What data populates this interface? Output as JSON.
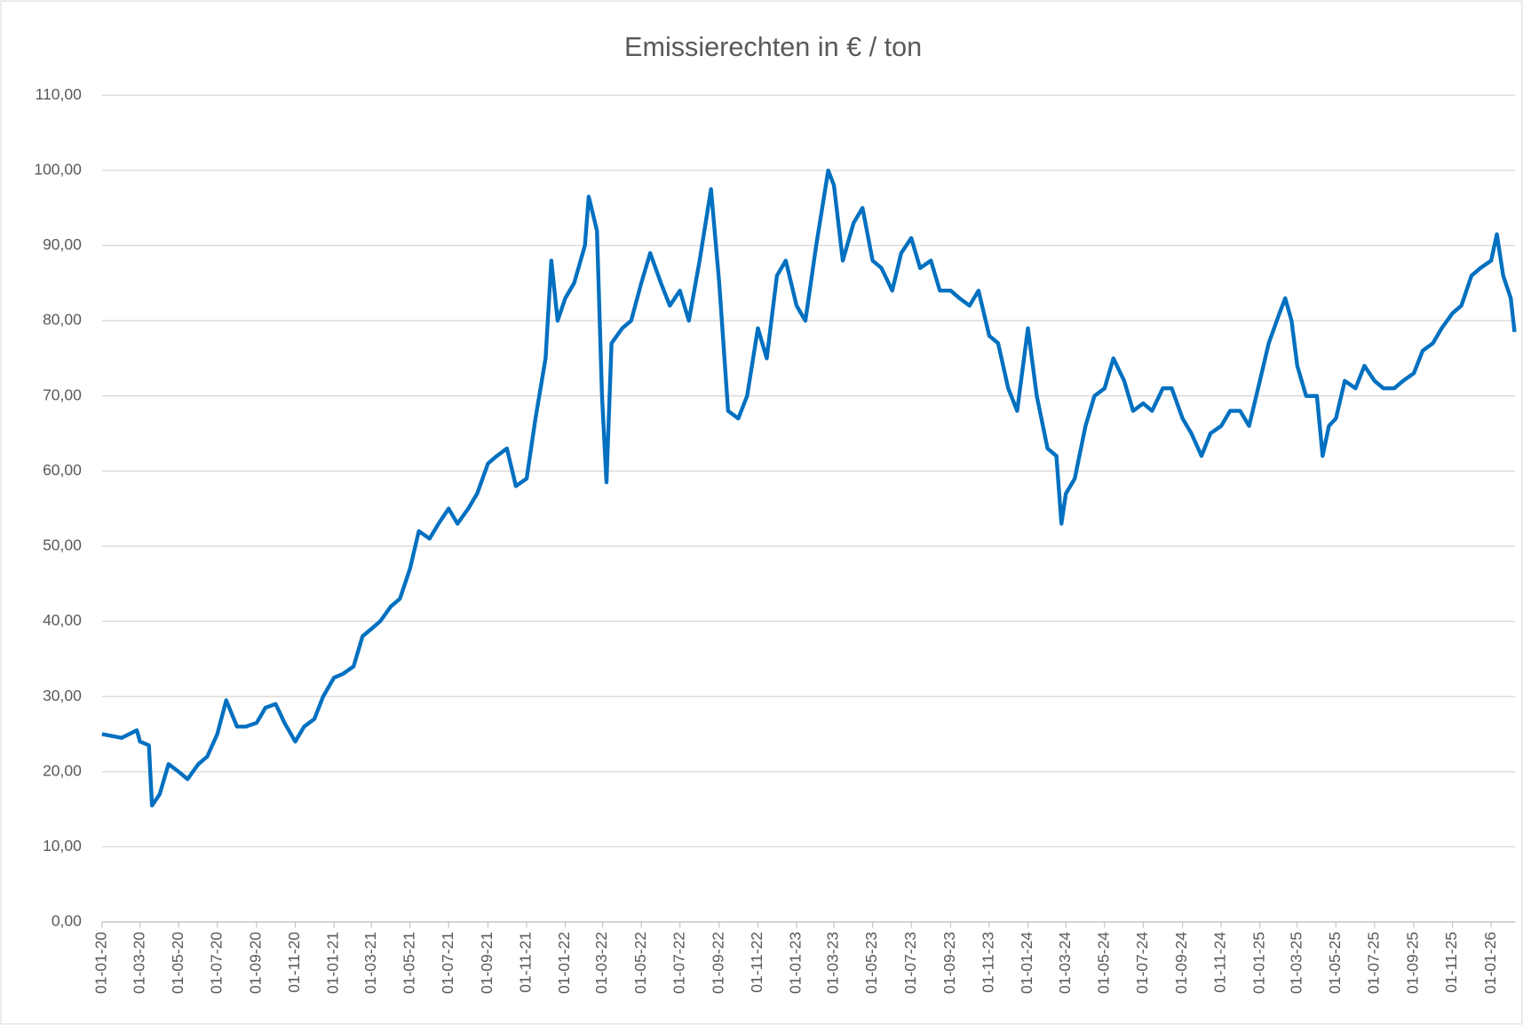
{
  "chart_data": {
    "type": "line",
    "title": "Emissierechten in € / ton",
    "x": [
      "2020-01-01",
      "2020-02-01",
      "2020-02-25",
      "2020-03-01",
      "2020-03-15",
      "2020-03-20",
      "2020-04-01",
      "2020-04-15",
      "2020-05-01",
      "2020-05-15",
      "2020-06-01",
      "2020-06-15",
      "2020-07-01",
      "2020-07-15",
      "2020-08-01",
      "2020-08-15",
      "2020-09-01",
      "2020-09-15",
      "2020-10-01",
      "2020-10-15",
      "2020-11-01",
      "2020-11-15",
      "2020-12-01",
      "2020-12-15",
      "2021-01-01",
      "2021-01-15",
      "2021-02-01",
      "2021-02-15",
      "2021-03-01",
      "2021-03-15",
      "2021-04-01",
      "2021-04-15",
      "2021-05-01",
      "2021-05-15",
      "2021-06-01",
      "2021-06-15",
      "2021-07-01",
      "2021-07-15",
      "2021-08-01",
      "2021-08-15",
      "2021-09-01",
      "2021-09-15",
      "2021-10-01",
      "2021-10-15",
      "2021-11-01",
      "2021-11-15",
      "2021-12-01",
      "2021-12-10",
      "2021-12-20",
      "2022-01-01",
      "2022-01-15",
      "2022-02-01",
      "2022-02-07",
      "2022-02-20",
      "2022-02-28",
      "2022-03-07",
      "2022-03-15",
      "2022-04-01",
      "2022-04-15",
      "2022-05-01",
      "2022-05-15",
      "2022-06-01",
      "2022-06-15",
      "2022-07-01",
      "2022-07-15",
      "2022-08-01",
      "2022-08-19",
      "2022-09-01",
      "2022-09-15",
      "2022-10-01",
      "2022-10-15",
      "2022-11-01",
      "2022-11-15",
      "2022-12-01",
      "2022-12-15",
      "2023-01-01",
      "2023-01-15",
      "2023-02-01",
      "2023-02-20",
      "2023-03-01",
      "2023-03-15",
      "2023-04-01",
      "2023-04-15",
      "2023-05-01",
      "2023-05-15",
      "2023-06-01",
      "2023-06-15",
      "2023-07-01",
      "2023-07-15",
      "2023-08-01",
      "2023-08-15",
      "2023-09-01",
      "2023-09-15",
      "2023-10-01",
      "2023-10-15",
      "2023-11-01",
      "2023-11-15",
      "2023-12-01",
      "2023-12-15",
      "2024-01-01",
      "2024-01-15",
      "2024-02-01",
      "2024-02-15",
      "2024-02-23",
      "2024-03-01",
      "2024-03-15",
      "2024-04-01",
      "2024-04-15",
      "2024-05-01",
      "2024-05-15",
      "2024-06-01",
      "2024-06-15",
      "2024-07-01",
      "2024-07-15",
      "2024-08-01",
      "2024-08-15",
      "2024-09-01",
      "2024-09-15",
      "2024-10-01",
      "2024-10-15",
      "2024-11-01",
      "2024-11-15",
      "2024-12-01",
      "2024-12-15",
      "2025-01-01",
      "2025-01-15",
      "2025-02-01",
      "2025-02-10",
      "2025-02-20",
      "2025-03-01",
      "2025-03-15",
      "2025-04-01",
      "2025-04-10",
      "2025-04-20",
      "2025-05-01",
      "2025-05-15",
      "2025-06-01",
      "2025-06-15",
      "2025-07-01",
      "2025-07-15",
      "2025-08-01",
      "2025-08-15",
      "2025-09-01",
      "2025-09-15",
      "2025-10-01",
      "2025-10-15",
      "2025-11-01",
      "2025-11-15",
      "2025-12-01",
      "2025-12-15",
      "2026-01-01",
      "2026-01-10",
      "2026-01-20",
      "2026-02-01",
      "2026-02-07"
    ],
    "series": [
      {
        "name": "Emissierechten",
        "color": "#0070c0",
        "values": [
          25,
          24.5,
          25.5,
          24,
          23.5,
          15.5,
          17,
          21,
          20,
          19,
          21,
          22,
          25,
          29.5,
          26,
          26,
          26.5,
          28.5,
          29,
          26.5,
          24,
          26,
          27,
          30,
          32.5,
          33,
          34,
          38,
          39,
          40,
          42,
          43,
          47,
          52,
          51,
          53,
          55,
          53,
          55,
          57,
          61,
          62,
          63,
          58,
          59,
          67,
          75,
          88,
          80,
          83,
          85,
          90,
          96.5,
          92,
          70,
          58.5,
          77,
          79,
          80,
          85,
          89,
          85,
          82,
          84,
          80,
          88,
          97.5,
          85,
          68,
          67,
          70,
          79,
          75,
          86,
          88,
          82,
          80,
          90,
          100,
          98,
          88,
          93,
          95,
          88,
          87,
          84,
          89,
          91,
          87,
          88,
          84,
          84,
          83,
          82,
          84,
          78,
          77,
          71,
          68,
          79,
          70,
          63,
          62,
          53,
          57,
          59,
          66,
          70,
          71,
          75,
          72,
          68,
          69,
          68,
          71,
          71,
          67,
          65,
          62,
          65,
          66,
          68,
          68,
          66,
          72,
          77,
          81,
          83,
          80,
          74,
          70,
          70,
          62,
          66,
          67,
          72,
          71,
          74,
          72,
          71,
          71,
          72,
          73,
          76,
          77,
          79,
          81,
          82,
          86,
          87,
          88,
          91.5,
          86,
          83,
          78.5
        ]
      }
    ],
    "xlim": [
      "2020-01-01",
      "2026-02-08"
    ],
    "xticks": [
      {
        "value": "2020-01-01",
        "label": "01-01-20"
      },
      {
        "value": "2020-03-01",
        "label": "01-03-20"
      },
      {
        "value": "2020-05-01",
        "label": "01-05-20"
      },
      {
        "value": "2020-07-01",
        "label": "01-07-20"
      },
      {
        "value": "2020-09-01",
        "label": "01-09-20"
      },
      {
        "value": "2020-11-01",
        "label": "01-11-20"
      },
      {
        "value": "2021-01-01",
        "label": "01-01-21"
      },
      {
        "value": "2021-03-01",
        "label": "01-03-21"
      },
      {
        "value": "2021-05-01",
        "label": "01-05-21"
      },
      {
        "value": "2021-07-01",
        "label": "01-07-21"
      },
      {
        "value": "2021-09-01",
        "label": "01-09-21"
      },
      {
        "value": "2021-11-01",
        "label": "01-11-21"
      },
      {
        "value": "2022-01-01",
        "label": "01-01-22"
      },
      {
        "value": "2022-03-01",
        "label": "01-03-22"
      },
      {
        "value": "2022-05-01",
        "label": "01-05-22"
      },
      {
        "value": "2022-07-01",
        "label": "01-07-22"
      },
      {
        "value": "2022-09-01",
        "label": "01-09-22"
      },
      {
        "value": "2022-11-01",
        "label": "01-11-22"
      },
      {
        "value": "2023-01-01",
        "label": "01-01-23"
      },
      {
        "value": "2023-03-01",
        "label": "01-03-23"
      },
      {
        "value": "2023-05-01",
        "label": "01-05-23"
      },
      {
        "value": "2023-07-01",
        "label": "01-07-23"
      },
      {
        "value": "2023-09-01",
        "label": "01-09-23"
      },
      {
        "value": "2023-11-01",
        "label": "01-11-23"
      },
      {
        "value": "2024-01-01",
        "label": "01-01-24"
      },
      {
        "value": "2024-03-01",
        "label": "01-03-24"
      },
      {
        "value": "2024-05-01",
        "label": "01-05-24"
      },
      {
        "value": "2024-07-01",
        "label": "01-07-24"
      },
      {
        "value": "2024-09-01",
        "label": "01-09-24"
      },
      {
        "value": "2024-11-01",
        "label": "01-11-24"
      },
      {
        "value": "2025-01-01",
        "label": "01-01-25"
      },
      {
        "value": "2025-03-01",
        "label": "01-03-25"
      },
      {
        "value": "2025-05-01",
        "label": "01-05-25"
      },
      {
        "value": "2025-07-01",
        "label": "01-07-25"
      },
      {
        "value": "2025-09-01",
        "label": "01-09-25"
      },
      {
        "value": "2025-11-01",
        "label": "01-11-25"
      },
      {
        "value": "2026-01-01",
        "label": "01-01-26"
      }
    ],
    "ylim": [
      0,
      110
    ],
    "yticks": [
      {
        "value": 0,
        "label": "0,00"
      },
      {
        "value": 10,
        "label": "10,00"
      },
      {
        "value": 20,
        "label": "20,00"
      },
      {
        "value": 30,
        "label": "30,00"
      },
      {
        "value": 40,
        "label": "40,00"
      },
      {
        "value": 50,
        "label": "50,00"
      },
      {
        "value": 60,
        "label": "60,00"
      },
      {
        "value": 70,
        "label": "70,00"
      },
      {
        "value": 80,
        "label": "80,00"
      },
      {
        "value": 90,
        "label": "90,00"
      },
      {
        "value": 100,
        "label": "100,00"
      },
      {
        "value": 110,
        "label": "110,00"
      }
    ],
    "grid": true
  }
}
